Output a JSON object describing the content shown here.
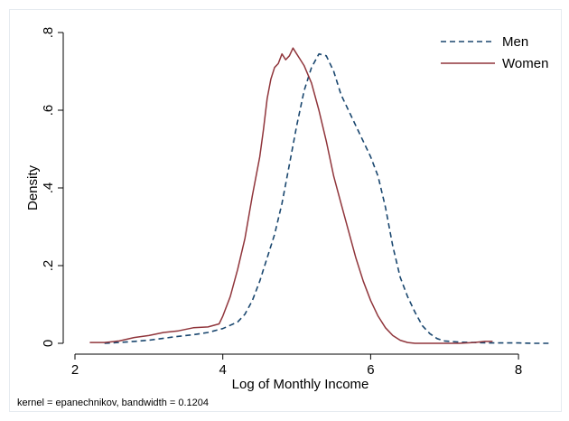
{
  "chart_data": {
    "type": "line",
    "title": "",
    "xlabel": "Log of Monthly Income",
    "ylabel": "Density",
    "note": "kernel = epanechnikov, bandwidth = 0.1204",
    "xlim": [
      2,
      8.5
    ],
    "ylim": [
      0,
      0.8
    ],
    "xticks": [
      2,
      4,
      6,
      8
    ],
    "xtick_labels": [
      "2",
      "4",
      "6",
      "8"
    ],
    "yticks": [
      0,
      0.2,
      0.4,
      0.6,
      0.8
    ],
    "ytick_labels": [
      "0",
      ".2",
      ".4",
      ".6",
      ".8"
    ],
    "grid": false,
    "legend_position": "top-right",
    "series": [
      {
        "name": "Men",
        "color": "#1a476f",
        "style": "dashed",
        "x": [
          2.4,
          2.6,
          2.8,
          3.0,
          3.2,
          3.4,
          3.6,
          3.8,
          4.0,
          4.2,
          4.3,
          4.4,
          4.5,
          4.6,
          4.7,
          4.8,
          4.9,
          5.0,
          5.1,
          5.2,
          5.3,
          5.4,
          5.5,
          5.6,
          5.7,
          5.8,
          5.9,
          6.0,
          6.1,
          6.2,
          6.3,
          6.4,
          6.5,
          6.6,
          6.7,
          6.8,
          6.9,
          7.0,
          7.2,
          7.4,
          7.6,
          7.8,
          8.0,
          8.2,
          8.45
        ],
        "y": [
          0.0,
          0.002,
          0.005,
          0.008,
          0.013,
          0.018,
          0.022,
          0.028,
          0.038,
          0.055,
          0.075,
          0.11,
          0.16,
          0.22,
          0.28,
          0.36,
          0.46,
          0.56,
          0.65,
          0.71,
          0.745,
          0.74,
          0.7,
          0.64,
          0.6,
          0.56,
          0.52,
          0.48,
          0.43,
          0.35,
          0.25,
          0.17,
          0.12,
          0.08,
          0.045,
          0.025,
          0.012,
          0.006,
          0.003,
          0.002,
          0.001,
          0.001,
          0.001,
          0.0,
          0.0
        ]
      },
      {
        "name": "Women",
        "color": "#90353b",
        "style": "solid",
        "x": [
          2.2,
          2.4,
          2.6,
          2.8,
          3.0,
          3.2,
          3.4,
          3.6,
          3.8,
          3.95,
          4.0,
          4.1,
          4.2,
          4.3,
          4.4,
          4.5,
          4.55,
          4.6,
          4.65,
          4.7,
          4.75,
          4.8,
          4.85,
          4.9,
          4.95,
          5.0,
          5.05,
          5.1,
          5.2,
          5.3,
          5.4,
          5.5,
          5.6,
          5.7,
          5.8,
          5.9,
          6.0,
          6.1,
          6.2,
          6.3,
          6.4,
          6.5,
          6.6,
          6.8,
          7.0,
          7.2,
          7.4,
          7.55,
          7.65
        ],
        "y": [
          0.002,
          0.002,
          0.006,
          0.015,
          0.02,
          0.028,
          0.032,
          0.04,
          0.042,
          0.05,
          0.07,
          0.12,
          0.19,
          0.27,
          0.38,
          0.48,
          0.55,
          0.63,
          0.68,
          0.71,
          0.72,
          0.745,
          0.73,
          0.74,
          0.76,
          0.745,
          0.73,
          0.715,
          0.67,
          0.6,
          0.52,
          0.43,
          0.36,
          0.29,
          0.22,
          0.16,
          0.11,
          0.07,
          0.04,
          0.02,
          0.008,
          0.002,
          0.0,
          0.0,
          0.0,
          0.0,
          0.002,
          0.005,
          0.005
        ]
      }
    ]
  }
}
